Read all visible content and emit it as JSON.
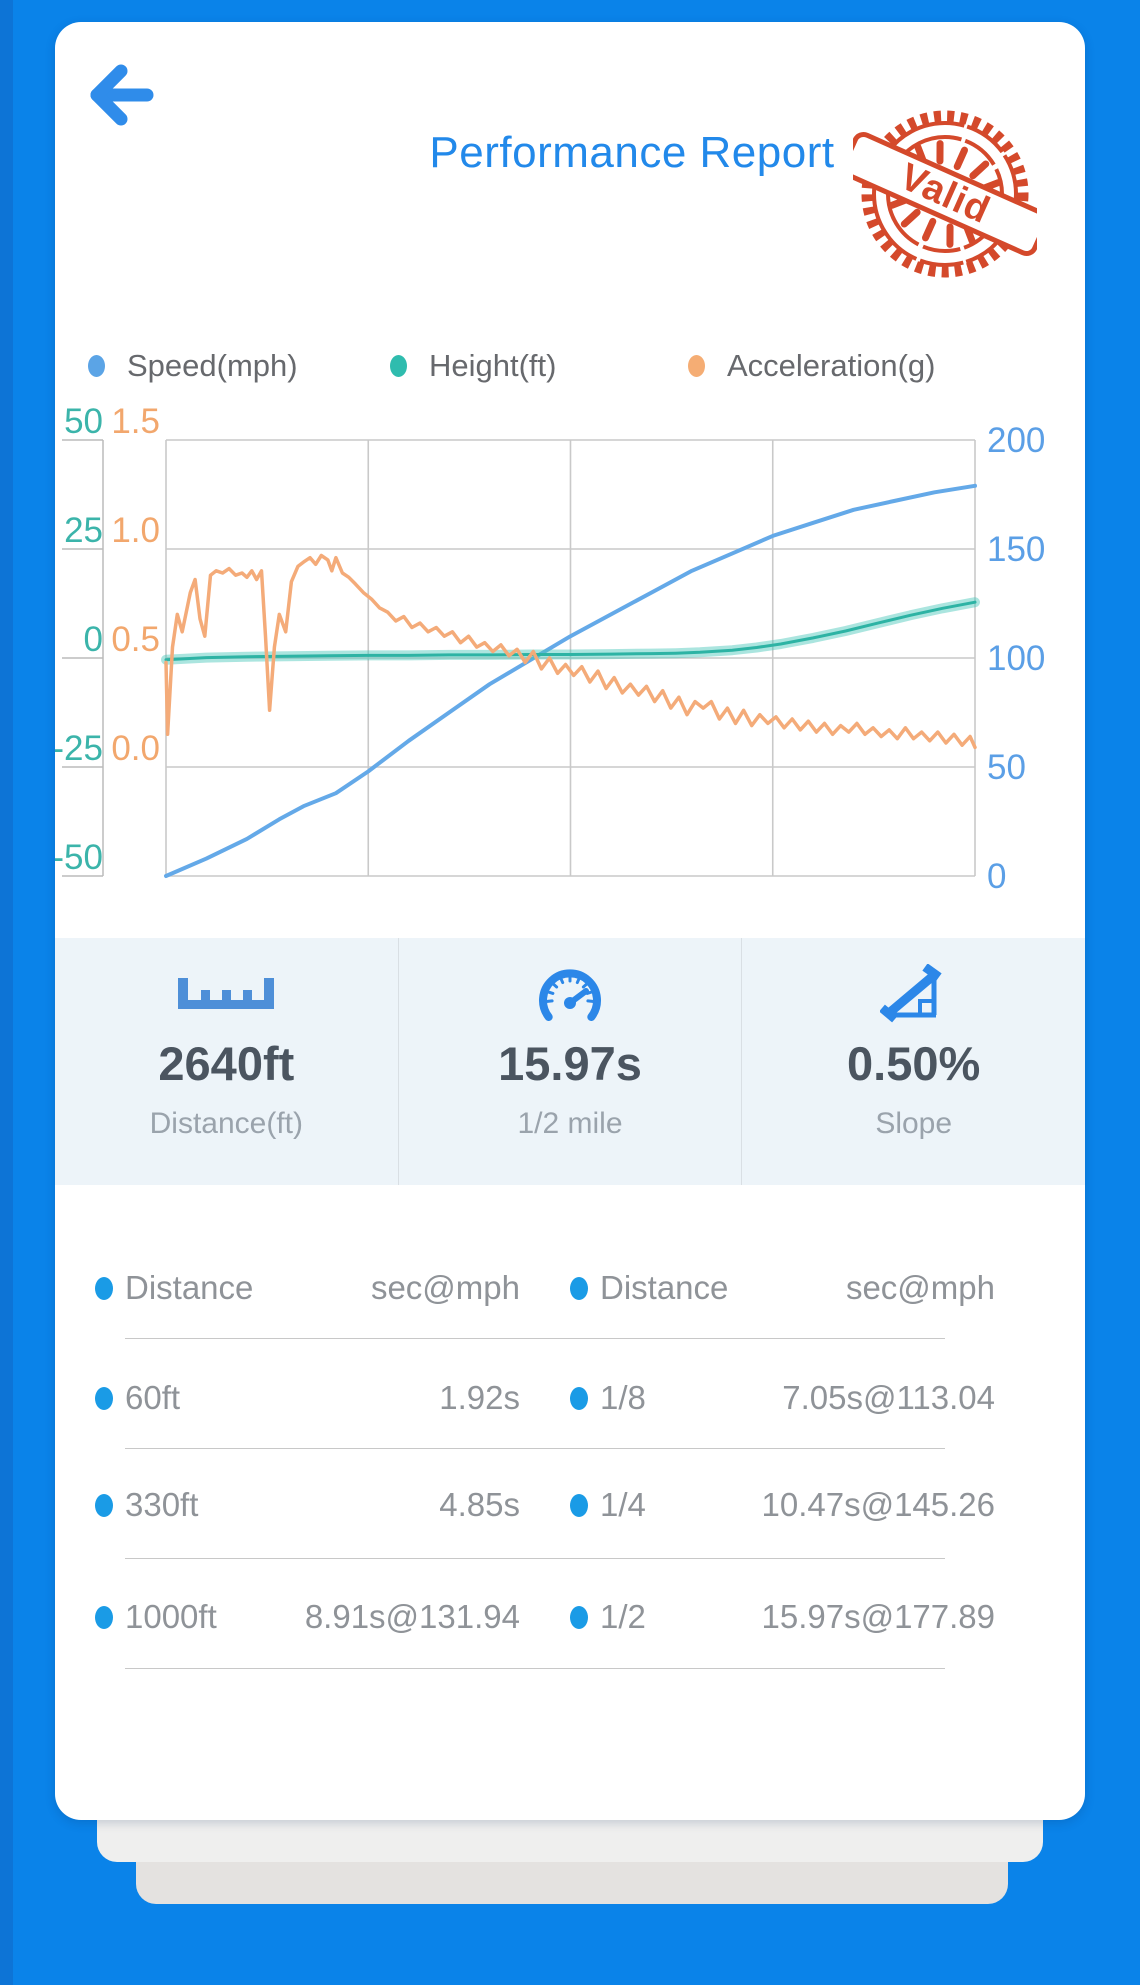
{
  "header": {
    "title": "Performance Report",
    "back_icon": "arrow-left",
    "stamp_text": "Valid",
    "stamp_color": "#d4492b",
    "title_color": "#2289ea"
  },
  "legend": [
    {
      "label": "Speed(mph)",
      "color": "#5ba4e6"
    },
    {
      "label": "Height(ft)",
      "color": "#2fbcae"
    },
    {
      "label": "Acceleration(g)",
      "color": "#f5ad74"
    }
  ],
  "chart_data": {
    "type": "line",
    "title": "",
    "xlabel": "",
    "grid": true,
    "x_range": [
      0,
      1
    ],
    "axes": {
      "left_height": {
        "color": "#3bb4aa",
        "ticks": [
          "50",
          "25",
          "0",
          "-25",
          "-50"
        ],
        "range": [
          -50,
          50
        ],
        "unit": "ft"
      },
      "left_accel": {
        "color": "#f2a76d",
        "ticks": [
          "1.5",
          "1.0",
          "0.5",
          "0.0"
        ],
        "range": [
          -0.5,
          1.5
        ],
        "unit": "g"
      },
      "right_speed": {
        "color": "#5b9fe6",
        "ticks": [
          "200",
          "150",
          "100",
          "50",
          "0"
        ],
        "range": [
          0,
          200
        ],
        "unit": "mph"
      }
    },
    "series": [
      {
        "name": "Speed(mph)",
        "axis": "right_speed",
        "color": "#64a9e8",
        "width": 4,
        "points": [
          [
            0,
            0
          ],
          [
            0.05,
            8
          ],
          [
            0.1,
            17
          ],
          [
            0.14,
            26
          ],
          [
            0.17,
            32
          ],
          [
            0.19,
            35
          ],
          [
            0.21,
            38
          ],
          [
            0.25,
            48
          ],
          [
            0.3,
            62
          ],
          [
            0.35,
            75
          ],
          [
            0.4,
            88
          ],
          [
            0.45,
            99
          ],
          [
            0.5,
            110
          ],
          [
            0.55,
            120
          ],
          [
            0.6,
            130
          ],
          [
            0.65,
            140
          ],
          [
            0.7,
            148
          ],
          [
            0.75,
            156
          ],
          [
            0.8,
            162
          ],
          [
            0.85,
            168
          ],
          [
            0.9,
            172
          ],
          [
            0.95,
            176
          ],
          [
            1,
            179
          ]
        ]
      },
      {
        "name": "Height(ft)",
        "axis": "left_height",
        "color": "#2db3a4",
        "halo": "rgba(69,197,184,0.45)",
        "halo_width": 10,
        "width": 3,
        "points": [
          [
            0,
            -0.4
          ],
          [
            0.05,
            0.1
          ],
          [
            0.1,
            0.3
          ],
          [
            0.15,
            0.4
          ],
          [
            0.2,
            0.5
          ],
          [
            0.25,
            0.6
          ],
          [
            0.3,
            0.6
          ],
          [
            0.35,
            0.7
          ],
          [
            0.4,
            0.7
          ],
          [
            0.45,
            0.8
          ],
          [
            0.5,
            0.8
          ],
          [
            0.55,
            0.9
          ],
          [
            0.6,
            1.0
          ],
          [
            0.63,
            1.1
          ],
          [
            0.66,
            1.3
          ],
          [
            0.7,
            1.8
          ],
          [
            0.73,
            2.4
          ],
          [
            0.76,
            3.2
          ],
          [
            0.8,
            4.6
          ],
          [
            0.84,
            6.2
          ],
          [
            0.88,
            8.0
          ],
          [
            0.92,
            9.8
          ],
          [
            0.96,
            11.4
          ],
          [
            1,
            12.8
          ]
        ]
      },
      {
        "name": "Acceleration(g)",
        "axis": "left_accel",
        "color": "#f4ab79",
        "width": 3.5,
        "points": [
          [
            0,
            0.48
          ],
          [
            0.002,
            0.15
          ],
          [
            0.008,
            0.55
          ],
          [
            0.014,
            0.7
          ],
          [
            0.02,
            0.62
          ],
          [
            0.03,
            0.8
          ],
          [
            0.036,
            0.86
          ],
          [
            0.042,
            0.68
          ],
          [
            0.048,
            0.6
          ],
          [
            0.055,
            0.88
          ],
          [
            0.062,
            0.9
          ],
          [
            0.07,
            0.89
          ],
          [
            0.078,
            0.91
          ],
          [
            0.086,
            0.88
          ],
          [
            0.094,
            0.89
          ],
          [
            0.1,
            0.87
          ],
          [
            0.106,
            0.9
          ],
          [
            0.112,
            0.86
          ],
          [
            0.118,
            0.9
          ],
          [
            0.123,
            0.6
          ],
          [
            0.128,
            0.26
          ],
          [
            0.134,
            0.55
          ],
          [
            0.14,
            0.7
          ],
          [
            0.148,
            0.62
          ],
          [
            0.155,
            0.85
          ],
          [
            0.163,
            0.92
          ],
          [
            0.17,
            0.94
          ],
          [
            0.178,
            0.96
          ],
          [
            0.185,
            0.93
          ],
          [
            0.192,
            0.97
          ],
          [
            0.2,
            0.95
          ],
          [
            0.205,
            0.9
          ],
          [
            0.21,
            0.96
          ],
          [
            0.218,
            0.89
          ],
          [
            0.226,
            0.87
          ],
          [
            0.234,
            0.84
          ],
          [
            0.244,
            0.8
          ],
          [
            0.254,
            0.77
          ],
          [
            0.264,
            0.73
          ],
          [
            0.274,
            0.71
          ],
          [
            0.284,
            0.67
          ],
          [
            0.294,
            0.69
          ],
          [
            0.304,
            0.64
          ],
          [
            0.314,
            0.66
          ],
          [
            0.324,
            0.62
          ],
          [
            0.334,
            0.64
          ],
          [
            0.344,
            0.6
          ],
          [
            0.354,
            0.62
          ],
          [
            0.364,
            0.57
          ],
          [
            0.374,
            0.6
          ],
          [
            0.384,
            0.55
          ],
          [
            0.394,
            0.57
          ],
          [
            0.404,
            0.53
          ],
          [
            0.414,
            0.56
          ],
          [
            0.424,
            0.51
          ],
          [
            0.434,
            0.54
          ],
          [
            0.444,
            0.48
          ],
          [
            0.454,
            0.53
          ],
          [
            0.464,
            0.45
          ],
          [
            0.474,
            0.5
          ],
          [
            0.484,
            0.43
          ],
          [
            0.494,
            0.47
          ],
          [
            0.504,
            0.42
          ],
          [
            0.514,
            0.46
          ],
          [
            0.524,
            0.39
          ],
          [
            0.534,
            0.44
          ],
          [
            0.544,
            0.36
          ],
          [
            0.554,
            0.41
          ],
          [
            0.564,
            0.34
          ],
          [
            0.574,
            0.38
          ],
          [
            0.584,
            0.33
          ],
          [
            0.594,
            0.37
          ],
          [
            0.604,
            0.3
          ],
          [
            0.614,
            0.35
          ],
          [
            0.624,
            0.27
          ],
          [
            0.634,
            0.32
          ],
          [
            0.644,
            0.24
          ],
          [
            0.654,
            0.3
          ],
          [
            0.664,
            0.27
          ],
          [
            0.674,
            0.3
          ],
          [
            0.684,
            0.22
          ],
          [
            0.694,
            0.27
          ],
          [
            0.704,
            0.2
          ],
          [
            0.714,
            0.26
          ],
          [
            0.724,
            0.19
          ],
          [
            0.734,
            0.24
          ],
          [
            0.744,
            0.2
          ],
          [
            0.754,
            0.23
          ],
          [
            0.764,
            0.18
          ],
          [
            0.774,
            0.22
          ],
          [
            0.784,
            0.17
          ],
          [
            0.794,
            0.21
          ],
          [
            0.804,
            0.16
          ],
          [
            0.814,
            0.2
          ],
          [
            0.824,
            0.15
          ],
          [
            0.834,
            0.19
          ],
          [
            0.844,
            0.16
          ],
          [
            0.854,
            0.2
          ],
          [
            0.864,
            0.15
          ],
          [
            0.874,
            0.18
          ],
          [
            0.884,
            0.14
          ],
          [
            0.894,
            0.17
          ],
          [
            0.904,
            0.13
          ],
          [
            0.914,
            0.18
          ],
          [
            0.924,
            0.13
          ],
          [
            0.934,
            0.16
          ],
          [
            0.944,
            0.12
          ],
          [
            0.954,
            0.16
          ],
          [
            0.964,
            0.11
          ],
          [
            0.974,
            0.15
          ],
          [
            0.984,
            0.1
          ],
          [
            0.994,
            0.14
          ],
          [
            1,
            0.09
          ]
        ]
      }
    ],
    "grid_color": "#c9c9c9",
    "axis_line_color": "#bbbbbb"
  },
  "stats": [
    {
      "icon": "ruler-icon",
      "value": "2640ft",
      "label": "Distance(ft)"
    },
    {
      "icon": "speedometer-icon",
      "value": "15.97s",
      "label": "1/2 mile"
    },
    {
      "icon": "slope-icon",
      "value": "0.50%",
      "label": "Slope"
    }
  ],
  "table": {
    "headers": [
      {
        "label": "Distance",
        "value": "sec@mph"
      },
      {
        "label": "Distance",
        "value": "sec@mph"
      }
    ],
    "rows": [
      [
        {
          "label": "60ft",
          "value": "1.92s"
        },
        {
          "label": "1/8",
          "value": "7.05s@113.04"
        }
      ],
      [
        {
          "label": "330ft",
          "value": "4.85s"
        },
        {
          "label": "1/4",
          "value": "10.47s@145.26"
        }
      ],
      [
        {
          "label": "1000ft",
          "value": "8.91s@131.94"
        },
        {
          "label": "1/2",
          "value": "15.97s@177.89"
        }
      ]
    ],
    "dot_color": "#1a9be6"
  },
  "colors": {
    "background": "#0a83e9",
    "card": "#ffffff",
    "stats_band": "#edf4f9",
    "stat_icon_blue": "#2c87e8",
    "value_text": "#4b5560",
    "muted_text": "#9aa3ac",
    "table_text": "#8f9398"
  }
}
